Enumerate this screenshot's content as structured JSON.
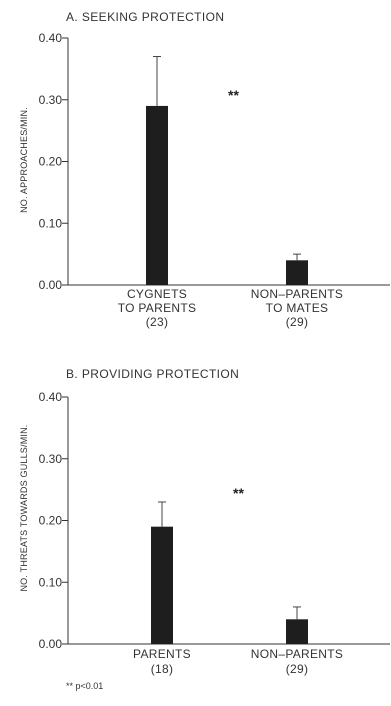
{
  "chart_data": [
    {
      "type": "bar",
      "title": "A.  SEEKING PROTECTION",
      "ylabel": "NO. APPROACHES/MIN.",
      "ylim": [
        0,
        0.4
      ],
      "yticks": [
        "0.00",
        "0.10",
        "0.20",
        "0.30",
        "0.40"
      ],
      "categories": [
        [
          "CYGNETS",
          "TO PARENTS",
          "(23)"
        ],
        [
          "NON–PARENTS",
          "TO MATES",
          "(29)"
        ]
      ],
      "values": [
        0.29,
        0.04
      ],
      "error_upper": [
        0.37,
        0.05
      ],
      "significance": "**",
      "bar_color": "#1e1e1e"
    },
    {
      "type": "bar",
      "title": "B.  PROVIDING PROTECTION",
      "ylabel": "NO. THREATS TOWARDS GULLS/MIN.",
      "ylim": [
        0,
        0.4
      ],
      "yticks": [
        "0.00",
        "0.10",
        "0.20",
        "0.30",
        "0.40"
      ],
      "categories": [
        [
          "PARENTS",
          "(18)"
        ],
        [
          "NON–PARENTS",
          "(29)"
        ]
      ],
      "values": [
        0.19,
        0.04
      ],
      "error_upper": [
        0.23,
        0.06
      ],
      "significance": "**",
      "bar_color": "#1e1e1e"
    }
  ],
  "footnote": "** p<0.01"
}
